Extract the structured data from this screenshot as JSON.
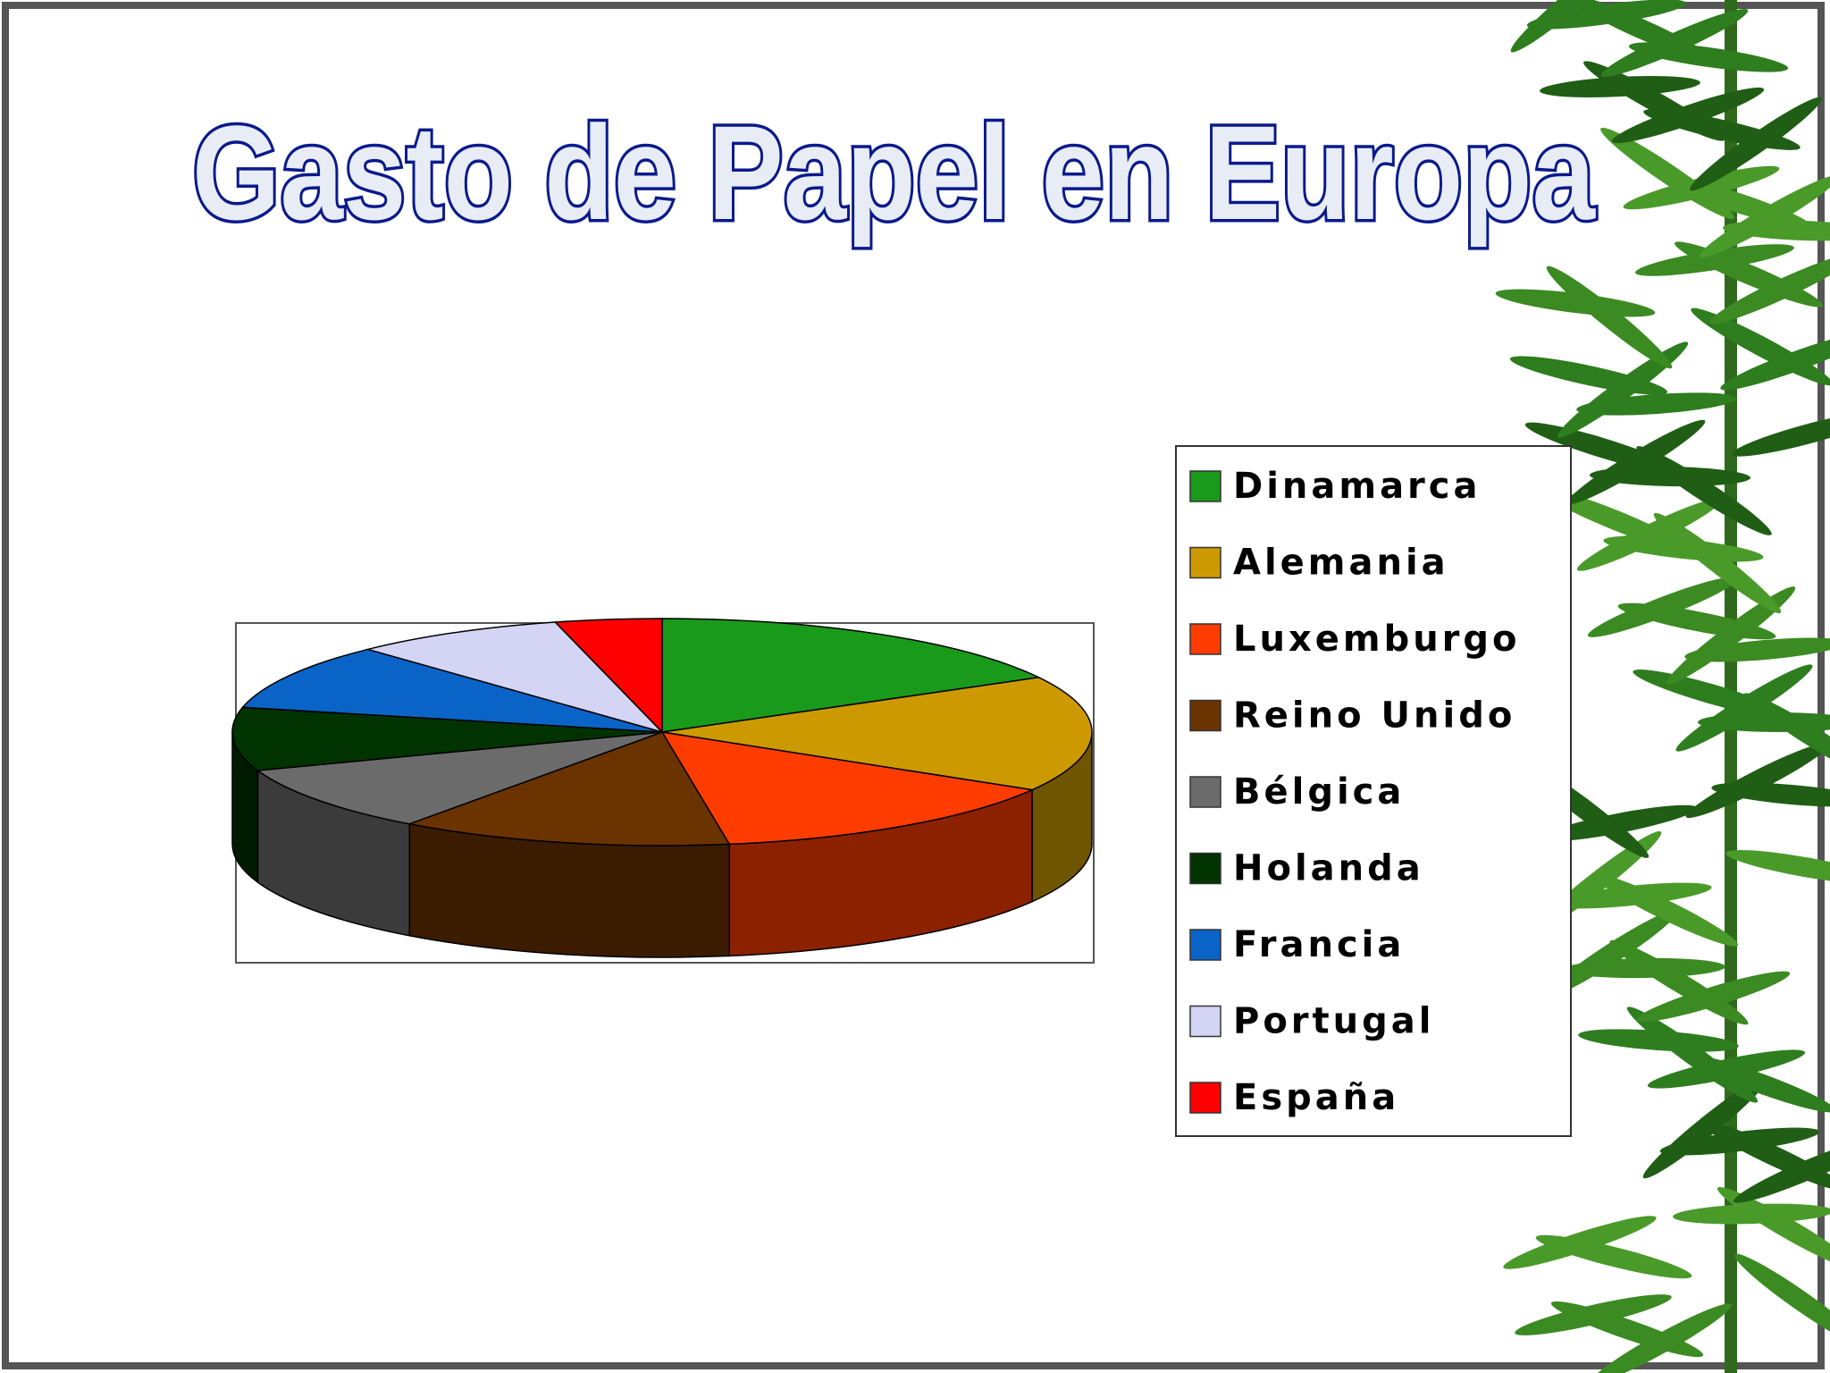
{
  "chart_data": {
    "type": "pie",
    "title": "Gasto de Papel en Europa",
    "categories": [
      "Dinamarca",
      "Alemania",
      "Luxemburgo",
      "Reino Unido",
      "Bélgica",
      "Holanda",
      "Francia",
      "Portugal",
      "España"
    ],
    "values": [
      17,
      16.5,
      14,
      12.5,
      9.5,
      9,
      9.5,
      8,
      4
    ],
    "colors": [
      "#1a9a1a",
      "#cc9a00",
      "#ff3c00",
      "#6b3300",
      "#6b6b6b",
      "#003300",
      "#0a64c8",
      "#d4d4f4",
      "#ff0000"
    ],
    "legend": "right"
  }
}
